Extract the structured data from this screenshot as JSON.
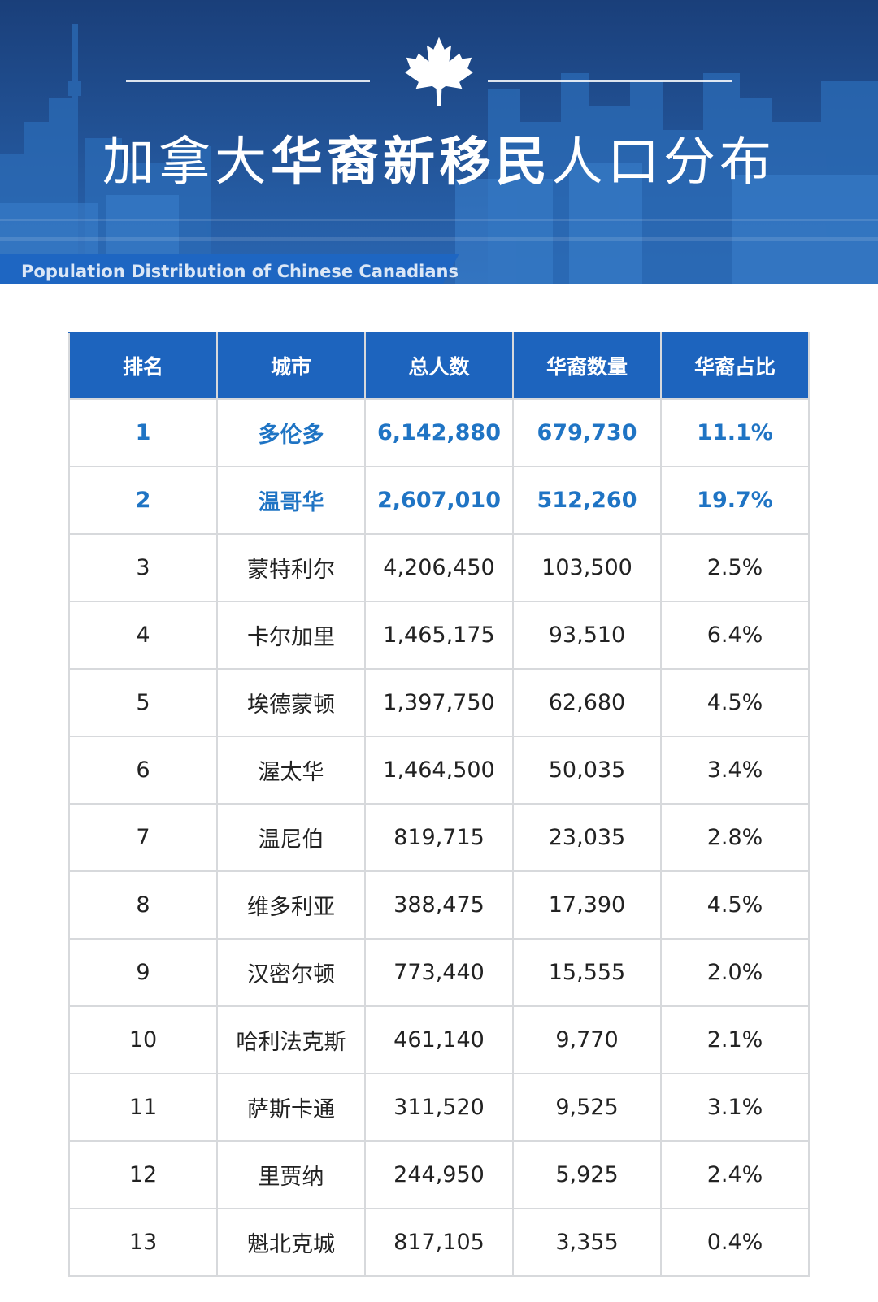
{
  "colors": {
    "banner_dark": "#1d4f93",
    "banner_light": "#2f78c7",
    "header_blue": "#1d64be",
    "highlight_text": "#1f74c4",
    "grid_line": "#d7d9dc"
  },
  "header": {
    "title_regular_1": "加拿大",
    "title_bold": "华裔新移民",
    "title_regular_2": "人口分布",
    "subtitle": "Population Distribution of Chinese Canadians",
    "icon": "maple-leaf-icon"
  },
  "table": {
    "columns": [
      "排名",
      "城市",
      "总人数",
      "华裔数量",
      "华裔占比"
    ],
    "rows": [
      {
        "rank": "1",
        "city": "多伦多",
        "total": "6,142,880",
        "chinese": "679,730",
        "share": "11.1%",
        "highlight": true
      },
      {
        "rank": "2",
        "city": "温哥华",
        "total": "2,607,010",
        "chinese": "512,260",
        "share": "19.7%",
        "highlight": true
      },
      {
        "rank": "3",
        "city": "蒙特利尔",
        "total": "4,206,450",
        "chinese": "103,500",
        "share": "2.5%",
        "highlight": false
      },
      {
        "rank": "4",
        "city": "卡尔加里",
        "total": "1,465,175",
        "chinese": "93,510",
        "share": "6.4%",
        "highlight": false
      },
      {
        "rank": "5",
        "city": "埃德蒙顿",
        "total": "1,397,750",
        "chinese": "62,680",
        "share": "4.5%",
        "highlight": false
      },
      {
        "rank": "6",
        "city": "渥太华",
        "total": "1,464,500",
        "chinese": "50,035",
        "share": "3.4%",
        "highlight": false
      },
      {
        "rank": "7",
        "city": "温尼伯",
        "total": "819,715",
        "chinese": "23,035",
        "share": "2.8%",
        "highlight": false
      },
      {
        "rank": "8",
        "city": "维多利亚",
        "total": "388,475",
        "chinese": "17,390",
        "share": "4.5%",
        "highlight": false
      },
      {
        "rank": "9",
        "city": "汉密尔顿",
        "total": "773,440",
        "chinese": "15,555",
        "share": "2.0%",
        "highlight": false
      },
      {
        "rank": "10",
        "city": "哈利法克斯",
        "total": "461,140",
        "chinese": "9,770",
        "share": "2.1%",
        "highlight": false
      },
      {
        "rank": "11",
        "city": "萨斯卡通",
        "total": "311,520",
        "chinese": "9,525",
        "share": "3.1%",
        "highlight": false
      },
      {
        "rank": "12",
        "city": "里贾纳",
        "total": "244,950",
        "chinese": "5,925",
        "share": "2.4%",
        "highlight": false
      },
      {
        "rank": "13",
        "city": "魁北克城",
        "total": "817,105",
        "chinese": "3,355",
        "share": "0.4%",
        "highlight": false
      }
    ]
  }
}
